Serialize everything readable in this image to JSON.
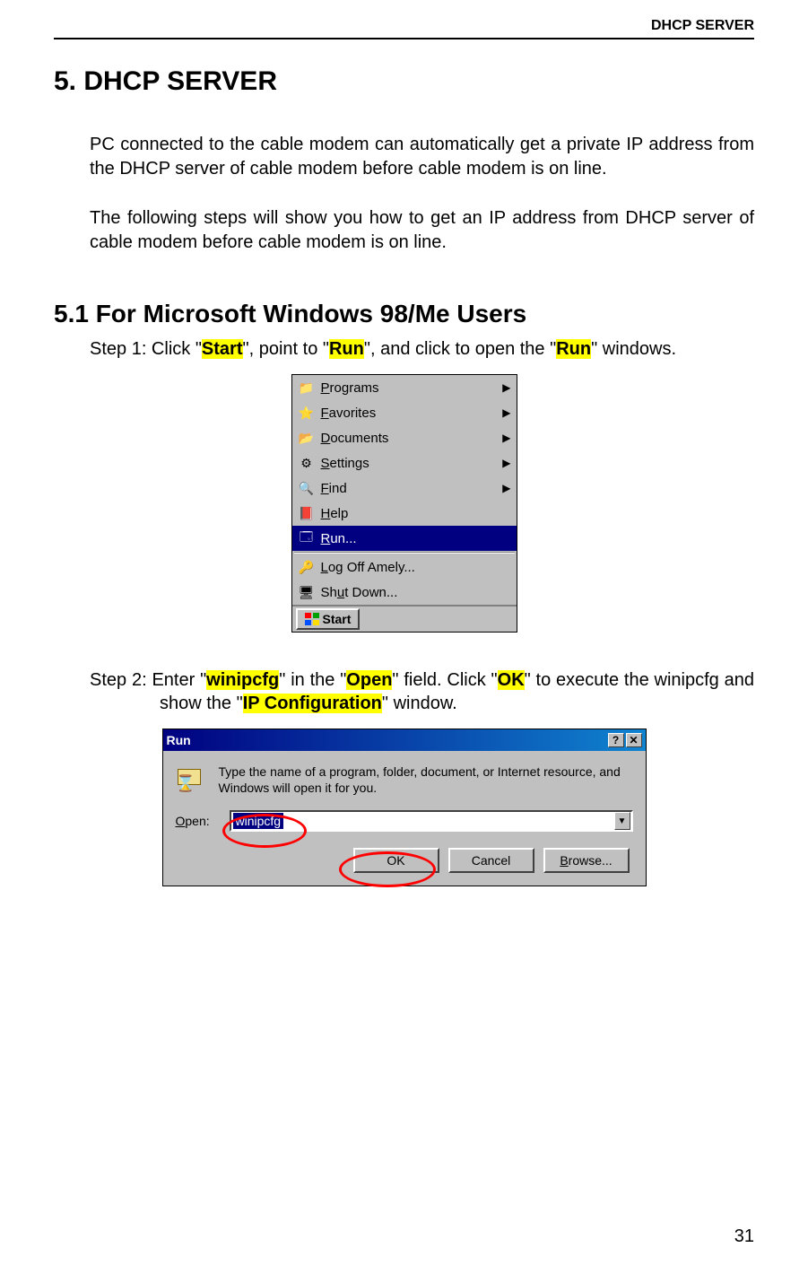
{
  "header": {
    "section_label": "DHCP SERVER"
  },
  "section": {
    "title": "5. DHCP SERVER",
    "intro1": "PC connected to the cable modem can automatically get a private IP address from the DHCP server of cable modem before cable modem is on line.",
    "intro2": "The following steps will show you how to get an IP address from DHCP server of cable modem before cable modem is on line."
  },
  "subsection": {
    "title": "5.1 For Microsoft Windows 98/Me Users"
  },
  "step1": {
    "prefix": "Step 1: Click \"",
    "hl1": "Start",
    "mid1": "\", point to \"",
    "hl2": "Run",
    "mid2": "\", and click to open the \"",
    "hl3": "Run",
    "suffix": "\" windows."
  },
  "step2": {
    "prefix": "Step 2: Enter \"",
    "hl1": "winipcfg",
    "mid1": "\" in the \"",
    "hl2": "Open",
    "mid2": "\" field. Click \"",
    "hl3": "OK",
    "mid3": "\" to execute the winipcfg and show the \"",
    "hl4": "IP Configuration",
    "suffix": "\" window."
  },
  "startmenu": {
    "items": [
      {
        "label_pre": "",
        "u": "P",
        "label_post": "rograms",
        "icon": "📁",
        "arrow": true
      },
      {
        "label_pre": "",
        "u": "F",
        "label_post": "avorites",
        "icon": "⭐",
        "arrow": true
      },
      {
        "label_pre": "",
        "u": "D",
        "label_post": "ocuments",
        "icon": "📂",
        "arrow": true
      },
      {
        "label_pre": "",
        "u": "S",
        "label_post": "ettings",
        "icon": "⚙",
        "arrow": true
      },
      {
        "label_pre": "",
        "u": "F",
        "label_post": "ind",
        "icon": "🔍",
        "arrow": true
      },
      {
        "label_pre": "",
        "u": "H",
        "label_post": "elp",
        "icon": "📕",
        "arrow": false
      },
      {
        "label_pre": "",
        "u": "R",
        "label_post": "un...",
        "icon": "🗔",
        "arrow": false,
        "selected": true
      },
      {
        "divider": true
      },
      {
        "label_pre": "",
        "u": "L",
        "label_post": "og Off Amely...",
        "icon": "🔑",
        "arrow": false
      },
      {
        "label_pre": "Sh",
        "u": "u",
        "label_post": "t Down...",
        "icon": "🖥",
        "arrow": false
      }
    ],
    "start_label": "Start"
  },
  "rundialog": {
    "title": "Run",
    "desc": "Type the name of a program, folder, document, or Internet resource, and Windows will open it for you.",
    "open_label_u": "O",
    "open_label_post": "pen:",
    "input_value": "winipcfg",
    "ok": "OK",
    "cancel": "Cancel",
    "browse_u": "B",
    "browse_post": "rowse..."
  },
  "page_number": "31"
}
